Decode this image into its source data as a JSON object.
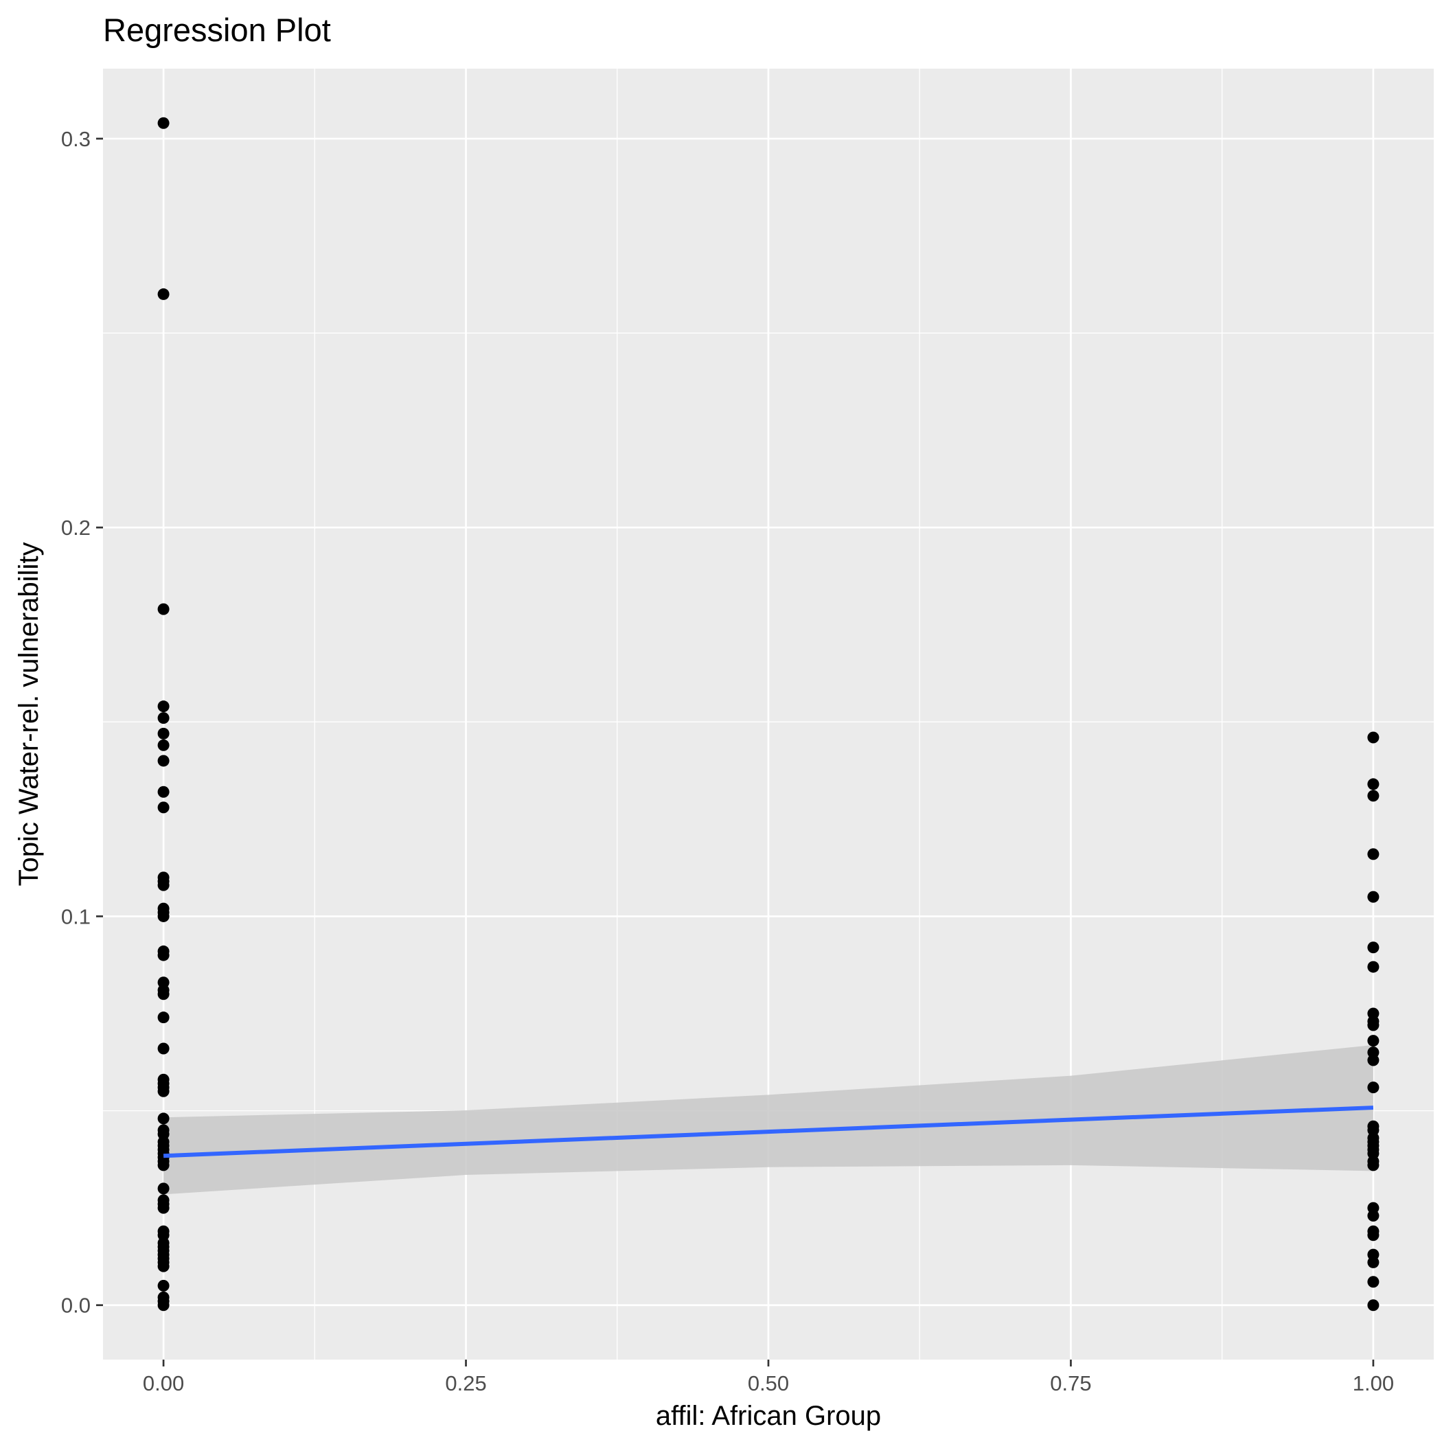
{
  "chart_data": {
    "type": "scatter",
    "title": "Regression Plot",
    "xlabel": "affil: African Group",
    "ylabel": "Topic Water-rel. vulnerability",
    "xlim": [
      -0.05,
      1.05
    ],
    "ylim": [
      -0.014,
      0.318
    ],
    "x_ticks": [
      0.0,
      0.25,
      0.5,
      0.75,
      1.0
    ],
    "x_tick_labels": [
      "0.00",
      "0.25",
      "0.50",
      "0.75",
      "1.00"
    ],
    "y_ticks": [
      0.0,
      0.1,
      0.2,
      0.3
    ],
    "y_tick_labels": [
      "0.0",
      "0.1",
      "0.2",
      "0.3"
    ],
    "grid": true,
    "colors": {
      "panel_background": "#ebebeb",
      "grid_line": "#ffffff",
      "points": "#000000",
      "regression_line": "#3366ff",
      "confidence_band": "#c8c8c8"
    },
    "points": [
      {
        "x": 0,
        "y": 0.304
      },
      {
        "x": 0,
        "y": 0.26
      },
      {
        "x": 0,
        "y": 0.179
      },
      {
        "x": 0,
        "y": 0.154
      },
      {
        "x": 0,
        "y": 0.151
      },
      {
        "x": 0,
        "y": 0.147
      },
      {
        "x": 0,
        "y": 0.144
      },
      {
        "x": 0,
        "y": 0.14
      },
      {
        "x": 0,
        "y": 0.132
      },
      {
        "x": 0,
        "y": 0.128
      },
      {
        "x": 0,
        "y": 0.11
      },
      {
        "x": 0,
        "y": 0.109
      },
      {
        "x": 0,
        "y": 0.108
      },
      {
        "x": 0,
        "y": 0.102
      },
      {
        "x": 0,
        "y": 0.101
      },
      {
        "x": 0,
        "y": 0.1
      },
      {
        "x": 0,
        "y": 0.091
      },
      {
        "x": 0,
        "y": 0.09
      },
      {
        "x": 0,
        "y": 0.083
      },
      {
        "x": 0,
        "y": 0.081
      },
      {
        "x": 0,
        "y": 0.08
      },
      {
        "x": 0,
        "y": 0.074
      },
      {
        "x": 0,
        "y": 0.066
      },
      {
        "x": 0,
        "y": 0.058
      },
      {
        "x": 0,
        "y": 0.057
      },
      {
        "x": 0,
        "y": 0.056
      },
      {
        "x": 0,
        "y": 0.055
      },
      {
        "x": 0,
        "y": 0.048
      },
      {
        "x": 0,
        "y": 0.045
      },
      {
        "x": 0,
        "y": 0.044
      },
      {
        "x": 0,
        "y": 0.042
      },
      {
        "x": 0,
        "y": 0.041
      },
      {
        "x": 0,
        "y": 0.04
      },
      {
        "x": 0,
        "y": 0.039
      },
      {
        "x": 0,
        "y": 0.038
      },
      {
        "x": 0,
        "y": 0.037
      },
      {
        "x": 0,
        "y": 0.036
      },
      {
        "x": 0,
        "y": 0.03
      },
      {
        "x": 0,
        "y": 0.027
      },
      {
        "x": 0,
        "y": 0.026
      },
      {
        "x": 0,
        "y": 0.025
      },
      {
        "x": 0,
        "y": 0.019
      },
      {
        "x": 0,
        "y": 0.018
      },
      {
        "x": 0,
        "y": 0.016
      },
      {
        "x": 0,
        "y": 0.015
      },
      {
        "x": 0,
        "y": 0.014
      },
      {
        "x": 0,
        "y": 0.013
      },
      {
        "x": 0,
        "y": 0.012
      },
      {
        "x": 0,
        "y": 0.011
      },
      {
        "x": 0,
        "y": 0.01
      },
      {
        "x": 0,
        "y": 0.005
      },
      {
        "x": 0,
        "y": 0.002
      },
      {
        "x": 0,
        "y": 0.001
      },
      {
        "x": 0,
        "y": 0.0
      },
      {
        "x": 1,
        "y": 0.146
      },
      {
        "x": 1,
        "y": 0.134
      },
      {
        "x": 1,
        "y": 0.131
      },
      {
        "x": 1,
        "y": 0.116
      },
      {
        "x": 1,
        "y": 0.105
      },
      {
        "x": 1,
        "y": 0.092
      },
      {
        "x": 1,
        "y": 0.087
      },
      {
        "x": 1,
        "y": 0.075
      },
      {
        "x": 1,
        "y": 0.073
      },
      {
        "x": 1,
        "y": 0.072
      },
      {
        "x": 1,
        "y": 0.068
      },
      {
        "x": 1,
        "y": 0.065
      },
      {
        "x": 1,
        "y": 0.063
      },
      {
        "x": 1,
        "y": 0.056
      },
      {
        "x": 1,
        "y": 0.046
      },
      {
        "x": 1,
        "y": 0.045
      },
      {
        "x": 1,
        "y": 0.043
      },
      {
        "x": 1,
        "y": 0.042
      },
      {
        "x": 1,
        "y": 0.041
      },
      {
        "x": 1,
        "y": 0.04
      },
      {
        "x": 1,
        "y": 0.039
      },
      {
        "x": 1,
        "y": 0.037
      },
      {
        "x": 1,
        "y": 0.036
      },
      {
        "x": 1,
        "y": 0.025
      },
      {
        "x": 1,
        "y": 0.023
      },
      {
        "x": 1,
        "y": 0.019
      },
      {
        "x": 1,
        "y": 0.018
      },
      {
        "x": 1,
        "y": 0.013
      },
      {
        "x": 1,
        "y": 0.011
      },
      {
        "x": 1,
        "y": 0.006
      },
      {
        "x": 1,
        "y": 0.0
      }
    ],
    "regression_line": {
      "x": [
        0,
        1
      ],
      "y": [
        0.0384,
        0.0508
      ]
    },
    "confidence_band": {
      "x": [
        0,
        0.25,
        0.5,
        0.75,
        1
      ],
      "lower": [
        0.0285,
        0.0335,
        0.0355,
        0.036,
        0.0345
      ],
      "upper": [
        0.0483,
        0.0501,
        0.0541,
        0.059,
        0.0669
      ]
    }
  }
}
